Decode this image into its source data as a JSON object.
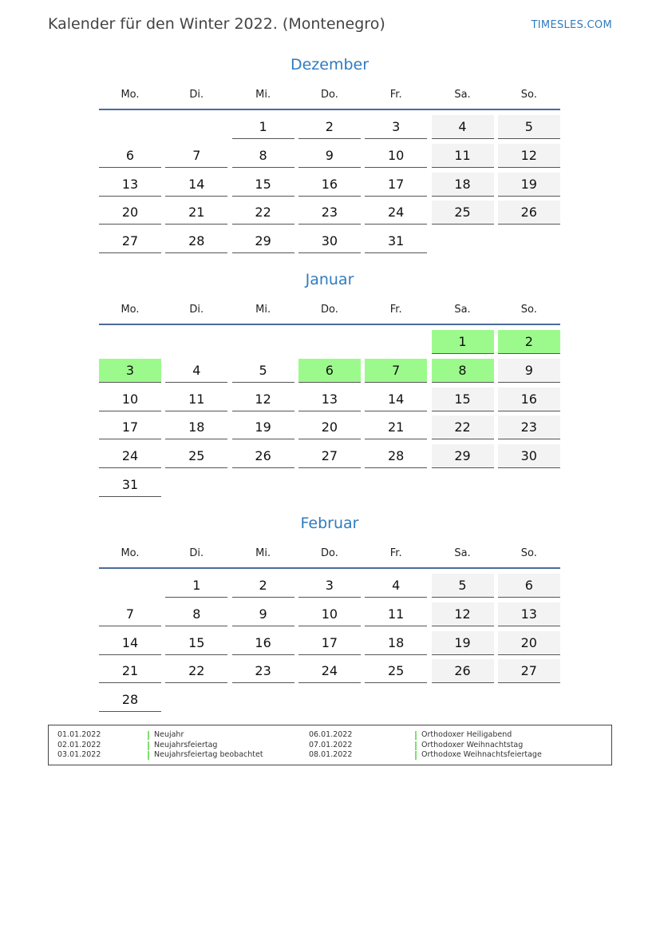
{
  "header": {
    "title": "Kalender für den Winter 2022. (Montenegro)",
    "brand": "TIMESLES.COM"
  },
  "weekdays": [
    "Mo.",
    "Di.",
    "Mi.",
    "Do.",
    "Fr.",
    "Sa.",
    "So."
  ],
  "colors": {
    "accent": "#2f7bbf",
    "weekend": "#f3f3f3",
    "holiday": "#9cfa8c",
    "header_line": "#4d6a9c"
  },
  "months": [
    {
      "name": "Dezember",
      "weeks": [
        [
          null,
          null,
          1,
          2,
          3,
          4,
          5
        ],
        [
          6,
          7,
          8,
          9,
          10,
          11,
          12
        ],
        [
          13,
          14,
          15,
          16,
          17,
          18,
          19
        ],
        [
          20,
          21,
          22,
          23,
          24,
          25,
          26
        ],
        [
          27,
          28,
          29,
          30,
          31,
          null,
          null
        ]
      ],
      "holidays": []
    },
    {
      "name": "Januar",
      "weeks": [
        [
          null,
          null,
          null,
          null,
          null,
          1,
          2
        ],
        [
          3,
          4,
          5,
          6,
          7,
          8,
          9
        ],
        [
          10,
          11,
          12,
          13,
          14,
          15,
          16
        ],
        [
          17,
          18,
          19,
          20,
          21,
          22,
          23
        ],
        [
          24,
          25,
          26,
          27,
          28,
          29,
          30
        ],
        [
          31,
          null,
          null,
          null,
          null,
          null,
          null
        ]
      ],
      "holidays": [
        1,
        2,
        3,
        6,
        7,
        8
      ]
    },
    {
      "name": "Februar",
      "weeks": [
        [
          null,
          1,
          2,
          3,
          4,
          5,
          6
        ],
        [
          7,
          8,
          9,
          10,
          11,
          12,
          13
        ],
        [
          14,
          15,
          16,
          17,
          18,
          19,
          20
        ],
        [
          21,
          22,
          23,
          24,
          25,
          26,
          27
        ],
        [
          28,
          null,
          null,
          null,
          null,
          null,
          null
        ]
      ],
      "holidays": []
    }
  ],
  "legend": [
    {
      "date": "01.01.2022",
      "name": "Neujahr"
    },
    {
      "date": "02.01.2022",
      "name": "Neujahrsfeiertag"
    },
    {
      "date": "03.01.2022",
      "name": "Neujahrsfeiertag beobachtet"
    },
    {
      "date": "06.01.2022",
      "name": "Orthodoxer Heiligabend"
    },
    {
      "date": "07.01.2022",
      "name": "Orthodoxer Weihnachtstag"
    },
    {
      "date": "08.01.2022",
      "name": "Orthodoxe Weihnachtsfeiertage"
    }
  ]
}
